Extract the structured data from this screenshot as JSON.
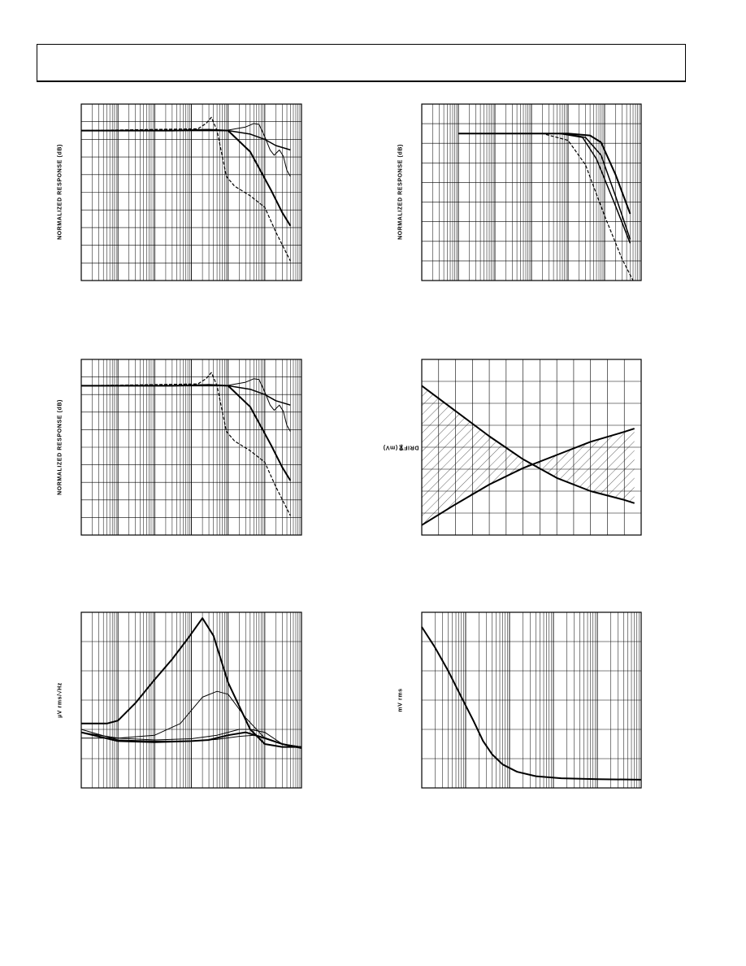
{
  "header": {
    "title": ""
  },
  "chart_data": [
    {
      "id": "c1",
      "type": "line",
      "ylabel": "NORMALIZED RESPONSE (dB)",
      "x_scale": "log",
      "xlim": [
        1,
        1000000
      ],
      "ylim": [
        -17,
        3
      ],
      "grid": true,
      "series": [
        {
          "style": "thick",
          "points": [
            [
              1,
              0
            ],
            [
              300,
              0
            ],
            [
              3000,
              0.1
            ],
            [
              10000,
              0
            ],
            [
              40000,
              -2.4
            ],
            [
              150000,
              -6.8
            ],
            [
              300000,
              -9.3
            ],
            [
              500000,
              -10.8
            ]
          ]
        },
        {
          "style": "thin",
          "points": [
            [
              1,
              0
            ],
            [
              10000,
              0.05
            ],
            [
              30000,
              0.4
            ],
            [
              50000,
              0.8
            ],
            [
              70000,
              0.7
            ],
            [
              100000,
              -0.7
            ],
            [
              140000,
              -2.2
            ],
            [
              180000,
              -2.8
            ],
            [
              250000,
              -2.2
            ],
            [
              320000,
              -2.9
            ],
            [
              400000,
              -4.5
            ],
            [
              500000,
              -5.2
            ]
          ]
        },
        {
          "style": "medium",
          "points": [
            [
              1,
              0
            ],
            [
              10000,
              0
            ],
            [
              40000,
              -0.4
            ],
            [
              100000,
              -1.0
            ],
            [
              200000,
              -1.7
            ],
            [
              500000,
              -2.2
            ]
          ]
        },
        {
          "style": "dashed",
          "points": [
            [
              1,
              0
            ],
            [
              1500,
              0.2
            ],
            [
              2500,
              0.8
            ],
            [
              3500,
              1.5
            ],
            [
              5000,
              0
            ],
            [
              7000,
              -3
            ],
            [
              9000,
              -5.2
            ],
            [
              15000,
              -6.3
            ],
            [
              40000,
              -7.4
            ],
            [
              100000,
              -8.7
            ],
            [
              200000,
              -11.5
            ],
            [
              500000,
              -14.8
            ]
          ]
        }
      ]
    },
    {
      "id": "c2",
      "type": "line",
      "ylabel": "NORMALIZED RESPONSE (dB)",
      "x_scale": "log",
      "xlim": [
        1,
        1000000
      ],
      "ylim": [
        -15,
        3
      ],
      "grid": true,
      "series": [
        {
          "style": "thick",
          "points": [
            [
              10,
              0
            ],
            [
              10000,
              0
            ],
            [
              40000,
              -0.2
            ],
            [
              80000,
              -0.9
            ],
            [
              200000,
              -4.2
            ],
            [
              500000,
              -8.2
            ]
          ]
        },
        {
          "style": "medium",
          "points": [
            [
              10,
              0
            ],
            [
              8000,
              0
            ],
            [
              30000,
              -0.4
            ],
            [
              80000,
              -2.2
            ],
            [
              200000,
              -6.4
            ],
            [
              500000,
              -10.8
            ]
          ]
        },
        {
          "style": "medium",
          "points": [
            [
              10,
              0
            ],
            [
              6000,
              0
            ],
            [
              25000,
              -0.4
            ],
            [
              60000,
              -2.6
            ],
            [
              200000,
              -7.4
            ],
            [
              500000,
              -11.2
            ]
          ]
        },
        {
          "style": "dashed",
          "points": [
            [
              10,
              0
            ],
            [
              2000,
              0
            ],
            [
              10000,
              -0.7
            ],
            [
              30000,
              -3.2
            ],
            [
              100000,
              -8.4
            ],
            [
              300000,
              -12.8
            ],
            [
              600000,
              -15
            ]
          ]
        }
      ]
    },
    {
      "id": "c3",
      "type": "line",
      "ylabel": "NORMALIZED RESPONSE (dB)",
      "x_scale": "log",
      "xlim": [
        1,
        1000000
      ],
      "ylim": [
        -17,
        3
      ],
      "grid": true,
      "series": [
        {
          "style": "thick",
          "points": [
            [
              1,
              0
            ],
            [
              300,
              0
            ],
            [
              3000,
              0.1
            ],
            [
              10000,
              0
            ],
            [
              40000,
              -2.4
            ],
            [
              150000,
              -6.8
            ],
            [
              300000,
              -9.3
            ],
            [
              500000,
              -10.8
            ]
          ]
        },
        {
          "style": "thin",
          "points": [
            [
              1,
              0
            ],
            [
              10000,
              0.05
            ],
            [
              30000,
              0.4
            ],
            [
              50000,
              0.8
            ],
            [
              70000,
              0.7
            ],
            [
              100000,
              -0.7
            ],
            [
              140000,
              -2.2
            ],
            [
              180000,
              -2.8
            ],
            [
              250000,
              -2.2
            ],
            [
              320000,
              -2.9
            ],
            [
              400000,
              -4.5
            ],
            [
              500000,
              -5.2
            ]
          ]
        },
        {
          "style": "medium",
          "points": [
            [
              1,
              0
            ],
            [
              10000,
              0
            ],
            [
              40000,
              -0.4
            ],
            [
              100000,
              -1.0
            ],
            [
              200000,
              -1.7
            ],
            [
              500000,
              -2.2
            ]
          ]
        },
        {
          "style": "dashed",
          "points": [
            [
              1,
              0
            ],
            [
              1500,
              0.2
            ],
            [
              2500,
              0.8
            ],
            [
              3500,
              1.5
            ],
            [
              5000,
              0
            ],
            [
              7000,
              -3
            ],
            [
              9000,
              -5.2
            ],
            [
              15000,
              -6.3
            ],
            [
              40000,
              -7.4
            ],
            [
              100000,
              -8.7
            ],
            [
              200000,
              -11.5
            ],
            [
              500000,
              -14.8
            ]
          ]
        }
      ]
    },
    {
      "id": "c4",
      "type": "line",
      "ylabel": "V",
      "ylabel_sub": "OS",
      "ylabel_tail": " DRIFT (mV)",
      "x_scale": "linear",
      "xlim": [
        0,
        13
      ],
      "ylim": [
        -2.5,
        5.5
      ],
      "grid": true,
      "shaded": true,
      "series": [
        {
          "style": "thick",
          "points": [
            [
              0,
              4.3
            ],
            [
              2,
              3.15
            ],
            [
              4,
              2.0
            ],
            [
              6,
              0.95
            ],
            [
              8,
              0.1
            ],
            [
              10,
              -0.5
            ],
            [
              12,
              -0.9
            ],
            [
              12.6,
              -1.05
            ]
          ]
        },
        {
          "style": "thick",
          "points": [
            [
              0,
              -2.05
            ],
            [
              2,
              -1.1
            ],
            [
              4,
              -0.2
            ],
            [
              6,
              0.55
            ],
            [
              8,
              1.15
            ],
            [
              10,
              1.75
            ],
            [
              12,
              2.2
            ],
            [
              12.6,
              2.35
            ]
          ]
        }
      ]
    },
    {
      "id": "c5",
      "type": "line",
      "ylabel": "µV rms/√Hz",
      "x_scale": "log",
      "xlim": [
        10,
        10000000
      ],
      "ylim": [
        0,
        3
      ],
      "grid": true,
      "series": [
        {
          "style": "thick",
          "points": [
            [
              10,
              1.1
            ],
            [
              50,
              1.1
            ],
            [
              100,
              1.15
            ],
            [
              300,
              1.45
            ],
            [
              1000,
              1.85
            ],
            [
              3000,
              2.2
            ],
            [
              8000,
              2.55
            ],
            [
              20000,
              2.9
            ],
            [
              40000,
              2.6
            ],
            [
              100000,
              1.8
            ],
            [
              400000,
              1.0
            ],
            [
              1000000,
              0.75
            ],
            [
              3000000,
              0.7
            ],
            [
              10000000,
              0.7
            ]
          ]
        },
        {
          "style": "thin",
          "points": [
            [
              10,
              0.85
            ],
            [
              100,
              0.85
            ],
            [
              1000,
              0.9
            ],
            [
              5000,
              1.1
            ],
            [
              20000,
              1.55
            ],
            [
              50000,
              1.65
            ],
            [
              100000,
              1.6
            ],
            [
              300000,
              1.2
            ],
            [
              1000000,
              0.85
            ],
            [
              3000000,
              0.75
            ],
            [
              10000000,
              0.7
            ]
          ]
        },
        {
          "style": "thin",
          "points": [
            [
              10,
              0.95
            ],
            [
              100,
              0.85
            ],
            [
              1000,
              0.82
            ],
            [
              10000,
              0.84
            ],
            [
              50000,
              0.9
            ],
            [
              200000,
              1.0
            ],
            [
              400000,
              1.0
            ],
            [
              1000000,
              0.95
            ],
            [
              3000000,
              0.75
            ],
            [
              10000000,
              0.7
            ]
          ]
        },
        {
          "style": "thick",
          "points": [
            [
              10,
              0.95
            ],
            [
              100,
              0.8
            ],
            [
              1000,
              0.78
            ],
            [
              10000,
              0.8
            ],
            [
              30000,
              0.82
            ],
            [
              100000,
              0.9
            ],
            [
              300000,
              0.95
            ],
            [
              1000000,
              0.85
            ],
            [
              3000000,
              0.75
            ],
            [
              10000000,
              0.68
            ]
          ]
        },
        {
          "style": "thin",
          "points": [
            [
              10,
              1.0
            ],
            [
              100,
              0.82
            ],
            [
              1000,
              0.8
            ],
            [
              10000,
              0.8
            ],
            [
              50000,
              0.83
            ],
            [
              200000,
              0.88
            ],
            [
              500000,
              0.9
            ],
            [
              1000000,
              0.86
            ],
            [
              3000000,
              0.75
            ],
            [
              10000000,
              0.7
            ]
          ]
        }
      ]
    },
    {
      "id": "c6",
      "type": "line",
      "ylabel": "mV rms",
      "x_scale": "log",
      "xlim": [
        1,
        100000
      ],
      "ylim": [
        0,
        6
      ],
      "grid": true,
      "series": [
        {
          "style": "thick",
          "points": [
            [
              1,
              5.5
            ],
            [
              2,
              4.8
            ],
            [
              4,
              4.0
            ],
            [
              8,
              3.1
            ],
            [
              15,
              2.3
            ],
            [
              25,
              1.6
            ],
            [
              40,
              1.15
            ],
            [
              70,
              0.8
            ],
            [
              150,
              0.55
            ],
            [
              400,
              0.4
            ],
            [
              1500,
              0.33
            ],
            [
              10000,
              0.3
            ],
            [
              100000,
              0.28
            ]
          ]
        }
      ]
    }
  ]
}
